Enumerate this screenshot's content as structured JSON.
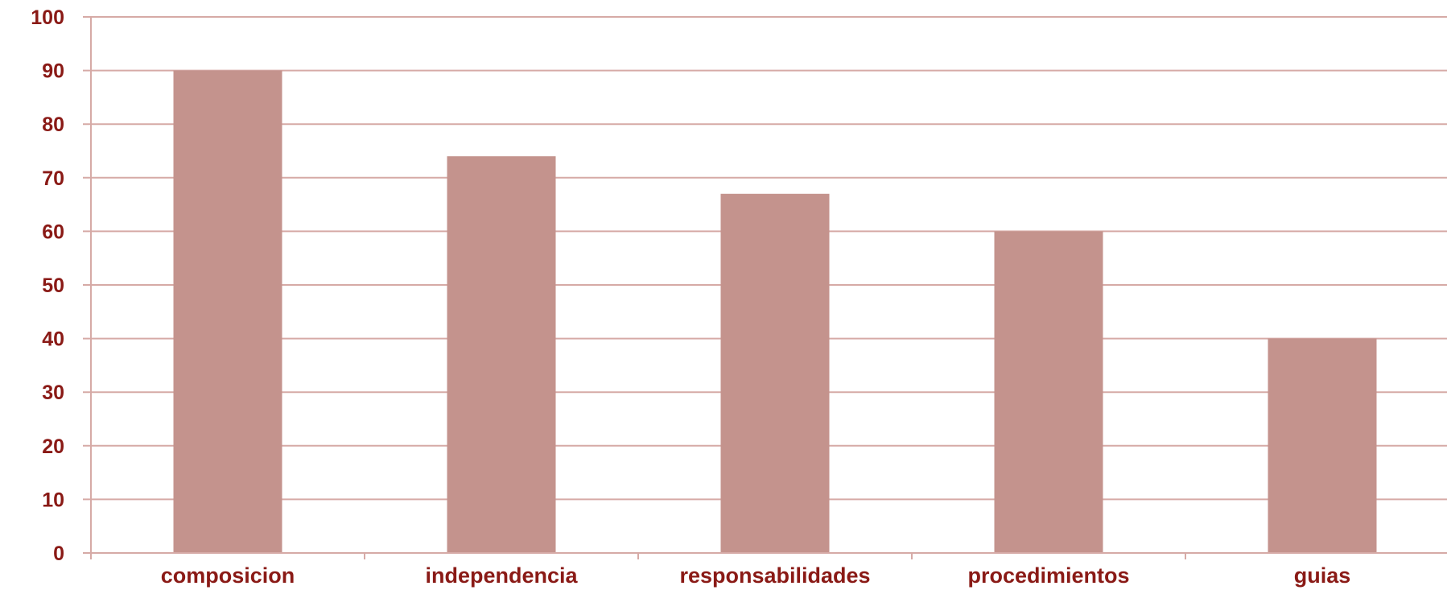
{
  "chart_data": {
    "type": "bar",
    "categories": [
      "composicion",
      "independencia",
      "responsabilidades",
      "procedimientos",
      "guias"
    ],
    "values": [
      90,
      74,
      67,
      60,
      40
    ],
    "title": "",
    "xlabel": "",
    "ylabel": "",
    "ylim": [
      0,
      100
    ],
    "yticks": [
      0,
      10,
      20,
      30,
      40,
      50,
      60,
      70,
      80,
      90,
      100
    ],
    "grid": "horizontal",
    "legend": "none",
    "colors": {
      "bar": "#c4938d",
      "grid": "#d6aaa6",
      "axis": "#d6aaa6",
      "text": "#8a1a16"
    }
  }
}
